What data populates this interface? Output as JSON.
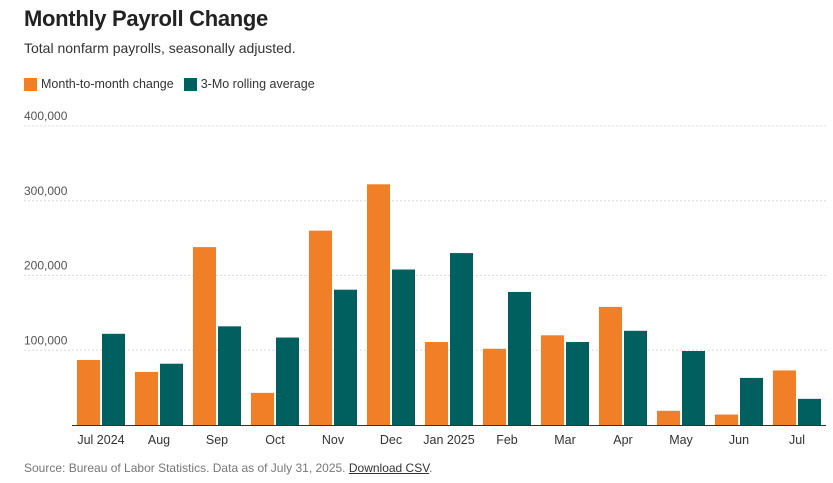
{
  "header": {
    "title": "Monthly Payroll Change",
    "subtitle": "Total nonfarm payrolls, seasonally adjusted."
  },
  "footer": {
    "source": "Source: Bureau of Labor Statistics. Data as of July 31, 2025.",
    "download_label": "Download CSV"
  },
  "colors": {
    "monthly": "#f07f27",
    "average": "#005f5f",
    "grid": "#dcdcdc",
    "axis": "#333333"
  },
  "chart_data": {
    "type": "bar",
    "title": "Monthly Payroll Change",
    "subtitle": "Total nonfarm payrolls, seasonally adjusted.",
    "categories": [
      "Jul 2024",
      "Aug",
      "Sep",
      "Oct",
      "Nov",
      "Dec",
      "Jan 2025",
      "Feb",
      "Mar",
      "Apr",
      "May",
      "Jun",
      "Jul"
    ],
    "series": [
      {
        "name": "Month-to-month change",
        "values": [
          87000,
          71000,
          238000,
          43000,
          260000,
          322000,
          111000,
          102000,
          120000,
          158000,
          19000,
          14000,
          73000
        ]
      },
      {
        "name": "3-Mo rolling average",
        "values": [
          122000,
          82000,
          132000,
          117000,
          181000,
          208000,
          230000,
          178000,
          111000,
          126000,
          99000,
          63000,
          35000
        ]
      }
    ],
    "yticks": [
      "100,000",
      "200,000",
      "300,000",
      "400,000"
    ],
    "ytick_values": [
      100000,
      200000,
      300000,
      400000
    ],
    "ylim": [
      0,
      400000
    ],
    "legend_position": "top-left",
    "grid": true
  }
}
